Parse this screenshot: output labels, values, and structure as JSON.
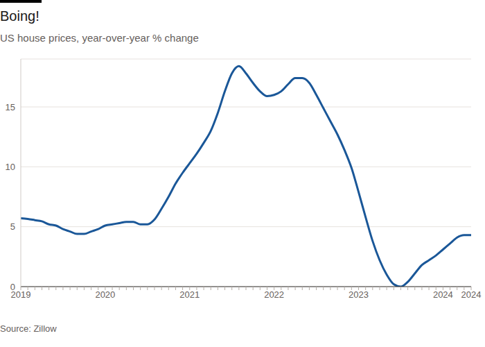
{
  "chart_data": {
    "type": "line",
    "title": "Boing!",
    "subtitle": "US house prices, year-over-year % change",
    "source": "Source: Zillow",
    "categories": [
      "2019",
      null,
      null,
      null,
      null,
      null,
      null,
      null,
      null,
      null,
      null,
      null,
      "2020",
      null,
      null,
      null,
      null,
      null,
      null,
      null,
      null,
      null,
      null,
      null,
      "2021",
      null,
      null,
      null,
      null,
      null,
      null,
      null,
      null,
      null,
      null,
      null,
      "2022",
      null,
      null,
      null,
      null,
      null,
      null,
      null,
      null,
      null,
      null,
      null,
      "2023",
      null,
      null,
      null,
      null,
      null,
      null,
      null,
      null,
      null,
      null,
      null,
      "2024",
      null,
      null,
      null,
      "2024"
    ],
    "values": [
      5.7,
      5.65,
      5.55,
      5.45,
      5.2,
      5.1,
      4.8,
      4.6,
      4.4,
      4.4,
      4.6,
      4.8,
      5.1,
      5.2,
      5.3,
      5.4,
      5.4,
      5.2,
      5.2,
      5.6,
      6.5,
      7.5,
      8.6,
      9.5,
      10.3,
      11.1,
      12.0,
      13.0,
      14.5,
      16.3,
      17.8,
      18.4,
      17.8,
      17.0,
      16.3,
      15.9,
      16.0,
      16.3,
      16.9,
      17.4,
      17.4,
      17.0,
      16.0,
      14.9,
      13.8,
      12.7,
      11.4,
      9.9,
      7.9,
      5.8,
      3.8,
      2.2,
      1.0,
      0.2,
      0.0,
      0.4,
      1.1,
      1.8,
      2.2,
      2.6,
      3.1,
      3.6,
      4.1,
      4.3,
      4.3
    ],
    "color": "#1a5798",
    "ylim": [
      0,
      19
    ],
    "yticks": [
      0,
      5,
      10,
      15
    ],
    "grid": true
  }
}
